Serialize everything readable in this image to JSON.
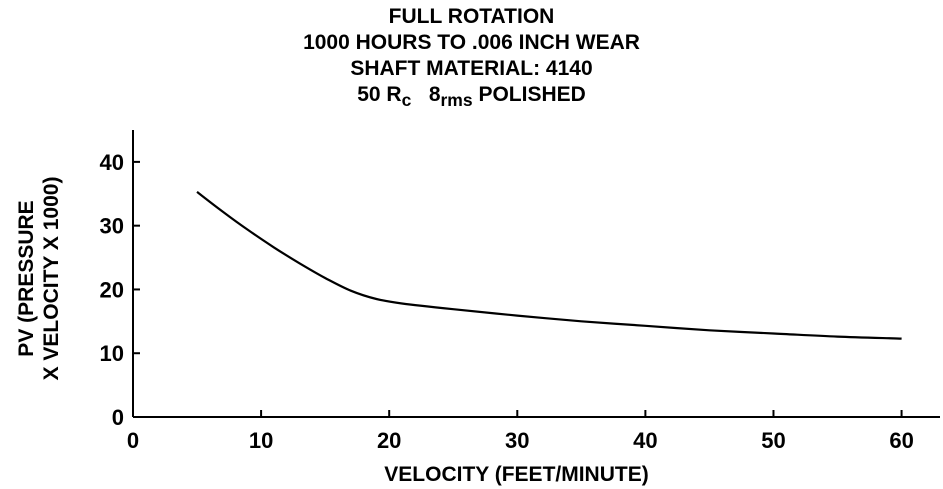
{
  "chart_data": {
    "type": "line",
    "title_lines": [
      "FULL ROTATION",
      "1000 HOURS TO .006 INCH WEAR",
      "SHAFT MATERIAL: 4140"
    ],
    "title_line4": {
      "a": "50 R",
      "a_sub": "c",
      "b": "8",
      "b_sub": "rms",
      "c": " POLISHED"
    },
    "xlabel": "VELOCITY (FEET/MINUTE)",
    "ylabel_lines": [
      "PV (PRESSURE",
      "X VELOCITY X 1000)"
    ],
    "xlim": [
      0,
      63
    ],
    "ylim": [
      0,
      45
    ],
    "xticks": [
      0,
      10,
      20,
      30,
      40,
      50,
      60
    ],
    "yticks": [
      0,
      10,
      20,
      30,
      40
    ],
    "grid": false,
    "series": [
      {
        "x": [
          5,
          7,
          9,
          11,
          13,
          15,
          17,
          19,
          21,
          25,
          30,
          35,
          40,
          45,
          50,
          55,
          60
        ],
        "y": [
          35.3,
          32.2,
          29.3,
          26.6,
          24.1,
          21.8,
          19.8,
          18.5,
          17.8,
          16.9,
          15.9,
          15.0,
          14.3,
          13.6,
          13.1,
          12.6,
          12.3
        ]
      }
    ]
  }
}
